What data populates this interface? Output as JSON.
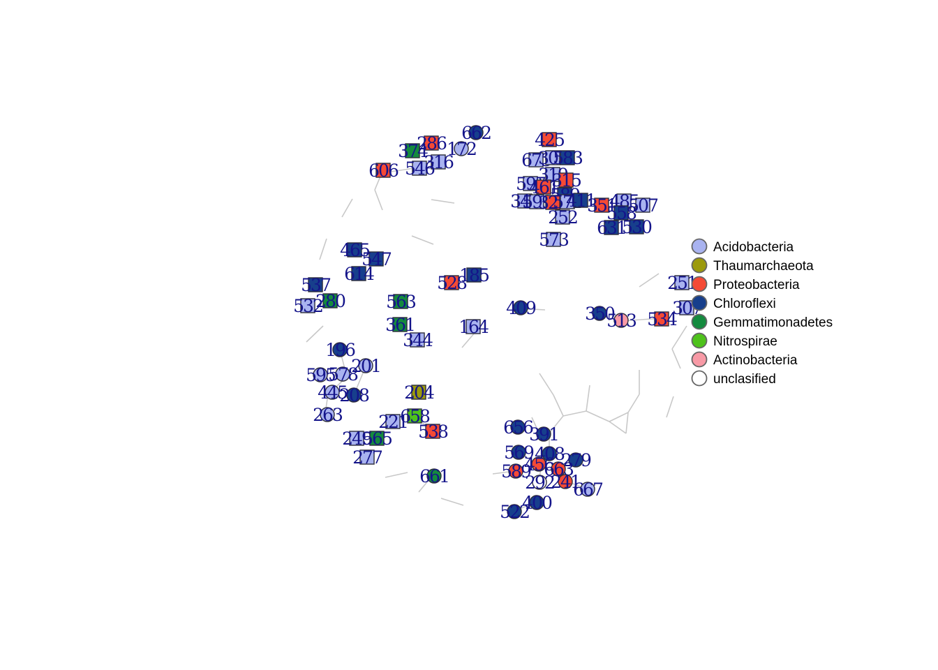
{
  "colors": {
    "Acidobacteria": "#a9b3f0",
    "Thaumarchaeota": "#9c9a0c",
    "Proteobacteria": "#f54a35",
    "Chloroflexi": "#173f8c",
    "Gemmatimonadetes": "#148a3e",
    "Nitrospirae": "#4ec21b",
    "Actinobacteria": "#f89aa6",
    "unclasified": "#ffffff"
  },
  "legend": {
    "items": [
      "Acidobacteria",
      "Thaumarchaeota",
      "Proteobacteria",
      "Chloroflexi",
      "Gemmatimonadetes",
      "Nitrospirae",
      "Actinobacteria",
      "unclasified"
    ]
  },
  "nodes": [
    {
      "label": "662",
      "taxon": "Chloroflexi",
      "shape": "circle"
    },
    {
      "label": "286",
      "taxon": "Proteobacteria",
      "shape": "square"
    },
    {
      "label": "374",
      "taxon": "Gemmatimonadetes",
      "shape": "square"
    },
    {
      "label": "172",
      "taxon": "Acidobacteria",
      "shape": "circle"
    },
    {
      "label": "316",
      "taxon": "Acidobacteria",
      "shape": "square"
    },
    {
      "label": "546",
      "taxon": "Acidobacteria",
      "shape": "square"
    },
    {
      "label": "606",
      "taxon": "Proteobacteria",
      "shape": "square"
    },
    {
      "label": "425",
      "taxon": "Proteobacteria",
      "shape": "square"
    },
    {
      "label": "673",
      "taxon": "Acidobacteria",
      "shape": "square"
    },
    {
      "label": "303",
      "taxon": "Acidobacteria",
      "shape": "square"
    },
    {
      "label": "583",
      "taxon": "Chloroflexi",
      "shape": "square"
    },
    {
      "label": "319",
      "taxon": "Acidobacteria",
      "shape": "square"
    },
    {
      "label": "315",
      "taxon": "Proteobacteria",
      "shape": "square"
    },
    {
      "label": "597",
      "taxon": "Acidobacteria",
      "shape": "square"
    },
    {
      "label": "461",
      "taxon": "Proteobacteria",
      "shape": "square"
    },
    {
      "label": "589",
      "taxon": "Chloroflexi",
      "shape": "square"
    },
    {
      "label": "349",
      "taxon": "Acidobacteria",
      "shape": "square"
    },
    {
      "label": "599",
      "taxon": "Acidobacteria",
      "shape": "square"
    },
    {
      "label": "321",
      "taxon": "Proteobacteria",
      "shape": "square"
    },
    {
      "label": "571",
      "taxon": "Acidobacteria",
      "shape": "square"
    },
    {
      "label": "411",
      "taxon": "Chloroflexi",
      "shape": "square"
    },
    {
      "label": "351",
      "taxon": "Proteobacteria",
      "shape": "square"
    },
    {
      "label": "485",
      "taxon": "Acidobacteria",
      "shape": "square"
    },
    {
      "label": "507",
      "taxon": "Acidobacteria",
      "shape": "square"
    },
    {
      "label": "558",
      "taxon": "Chloroflexi",
      "shape": "square"
    },
    {
      "label": "252",
      "taxon": "Acidobacteria",
      "shape": "square"
    },
    {
      "label": "631",
      "taxon": "Chloroflexi",
      "shape": "square"
    },
    {
      "label": "530",
      "taxon": "Chloroflexi",
      "shape": "square"
    },
    {
      "label": "573",
      "taxon": "Acidobacteria",
      "shape": "square"
    },
    {
      "label": "465",
      "taxon": "Chloroflexi",
      "shape": "square"
    },
    {
      "label": "547",
      "taxon": "Chloroflexi",
      "shape": "square"
    },
    {
      "label": "614",
      "taxon": "Chloroflexi",
      "shape": "square"
    },
    {
      "label": "537",
      "taxon": "Chloroflexi",
      "shape": "square"
    },
    {
      "label": "532",
      "taxon": "Acidobacteria",
      "shape": "square"
    },
    {
      "label": "280",
      "taxon": "Gemmatimonadetes",
      "shape": "square"
    },
    {
      "label": "185",
      "taxon": "Chloroflexi",
      "shape": "square"
    },
    {
      "label": "528",
      "taxon": "Proteobacteria",
      "shape": "square"
    },
    {
      "label": "563",
      "taxon": "Gemmatimonadetes",
      "shape": "square"
    },
    {
      "label": "361",
      "taxon": "Gemmatimonadetes",
      "shape": "square"
    },
    {
      "label": "344",
      "taxon": "Acidobacteria",
      "shape": "square"
    },
    {
      "label": "164",
      "taxon": "Acidobacteria",
      "shape": "square"
    },
    {
      "label": "409",
      "taxon": "Chloroflexi",
      "shape": "circle"
    },
    {
      "label": "350",
      "taxon": "Chloroflexi",
      "shape": "circle"
    },
    {
      "label": "513",
      "taxon": "Actinobacteria",
      "shape": "circle"
    },
    {
      "label": "534",
      "taxon": "Proteobacteria",
      "shape": "square"
    },
    {
      "label": "251",
      "taxon": "Acidobacteria",
      "shape": "square"
    },
    {
      "label": "307",
      "taxon": "Acidobacteria",
      "shape": "square"
    },
    {
      "label": "196",
      "taxon": "Chloroflexi",
      "shape": "circle"
    },
    {
      "label": "201",
      "taxon": "Acidobacteria",
      "shape": "circle"
    },
    {
      "label": "595",
      "taxon": "Acidobacteria",
      "shape": "circle"
    },
    {
      "label": "578",
      "taxon": "Acidobacteria",
      "shape": "circle"
    },
    {
      "label": "445",
      "taxon": "Acidobacteria",
      "shape": "circle"
    },
    {
      "label": "208",
      "taxon": "Chloroflexi",
      "shape": "circle"
    },
    {
      "label": "263",
      "taxon": "Acidobacteria",
      "shape": "circle"
    },
    {
      "label": "204",
      "taxon": "Thaumarchaeota",
      "shape": "square"
    },
    {
      "label": "658",
      "taxon": "Nitrospirae",
      "shape": "square"
    },
    {
      "label": "221",
      "taxon": "Acidobacteria",
      "shape": "square"
    },
    {
      "label": "538",
      "taxon": "Proteobacteria",
      "shape": "square"
    },
    {
      "label": "249",
      "taxon": "Acidobacteria",
      "shape": "square"
    },
    {
      "label": "565",
      "taxon": "Gemmatimonadetes",
      "shape": "square"
    },
    {
      "label": "277",
      "taxon": "Acidobacteria",
      "shape": "square"
    },
    {
      "label": "661",
      "taxon": "Gemmatimonadetes",
      "shape": "circle"
    },
    {
      "label": "656",
      "taxon": "Chloroflexi",
      "shape": "circle"
    },
    {
      "label": "391",
      "taxon": "Chloroflexi",
      "shape": "circle"
    },
    {
      "label": "569",
      "taxon": "Chloroflexi",
      "shape": "circle"
    },
    {
      "label": "408",
      "taxon": "Chloroflexi",
      "shape": "circle"
    },
    {
      "label": "279",
      "taxon": "Chloroflexi",
      "shape": "circle"
    },
    {
      "label": "589",
      "taxon": "Proteobacteria",
      "shape": "circle"
    },
    {
      "label": "456",
      "taxon": "Proteobacteria",
      "shape": "circle"
    },
    {
      "label": "663",
      "taxon": "Proteobacteria",
      "shape": "circle"
    },
    {
      "label": "292",
      "taxon": "unclasified",
      "shape": "circle"
    },
    {
      "label": "241",
      "taxon": "Proteobacteria",
      "shape": "circle"
    },
    {
      "label": "667",
      "taxon": "Acidobacteria",
      "shape": "circle"
    },
    {
      "label": "400",
      "taxon": "Chloroflexi",
      "shape": "circle"
    },
    {
      "label": "522",
      "taxon": "Chloroflexi",
      "shape": "circle"
    }
  ]
}
